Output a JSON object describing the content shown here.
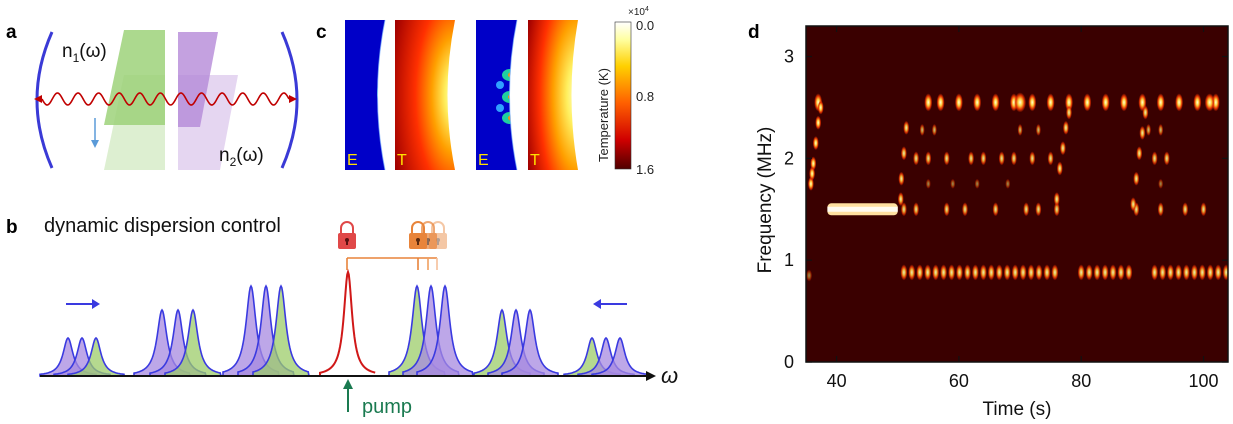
{
  "panels": {
    "a": {
      "letter": "a",
      "n1_label_base": "n",
      "n1_sub": "1",
      "n1_arg": "(ω)",
      "n2_label_base": "n",
      "n2_sub": "2",
      "n2_arg": "(ω)"
    },
    "b": {
      "letter": "b",
      "title": "dynamic dispersion control",
      "omega_label": "ω",
      "pump_label": "pump"
    },
    "c": {
      "letter": "c",
      "map_labels": [
        "E",
        "T",
        "E",
        "T"
      ],
      "colorbar_exponent": "×10",
      "colorbar_exponent_power": "4",
      "colorbar_ticks": [
        "0.0",
        "0.8",
        "1.6"
      ],
      "colorbar_label": "Temperature (K)"
    },
    "d": {
      "letter": "d"
    }
  },
  "chart_data": {
    "type": "heatmap",
    "xlabel": "Time (s)",
    "ylabel": "Frequency (MHz)",
    "x_ticks": [
      "40",
      "60",
      "80",
      "100"
    ],
    "y_ticks": [
      "0",
      "1",
      "2",
      "3"
    ],
    "xlim": [
      35,
      104
    ],
    "ylim": [
      0,
      3.3
    ],
    "background": "#3a0000",
    "features": {
      "top_line_2_55": [
        37,
        55,
        57,
        60,
        63,
        66,
        69,
        72,
        75,
        78,
        81,
        84,
        87,
        90,
        93,
        96,
        99,
        102
      ],
      "bottom_band_0_88": [
        [
          51,
          76
        ],
        [
          80,
          88
        ],
        [
          92,
          104
        ]
      ],
      "flat_segment_1_5": [
        37,
        50
      ]
    }
  },
  "colors": {
    "cavity": "#3a3ad6",
    "wave": "#c00000",
    "green_prism": "#9ed27a",
    "purple_prism": "#b58ad8",
    "mode_blue": "#3a3ae0",
    "mode_fill_green": "#9ccc6a",
    "mode_fill_purple": "#a78ae0",
    "pump": "#d01818",
    "pump_arrow": "#1a7a50",
    "lock_red": "#e04848",
    "lock_orange": "#e8843a"
  }
}
